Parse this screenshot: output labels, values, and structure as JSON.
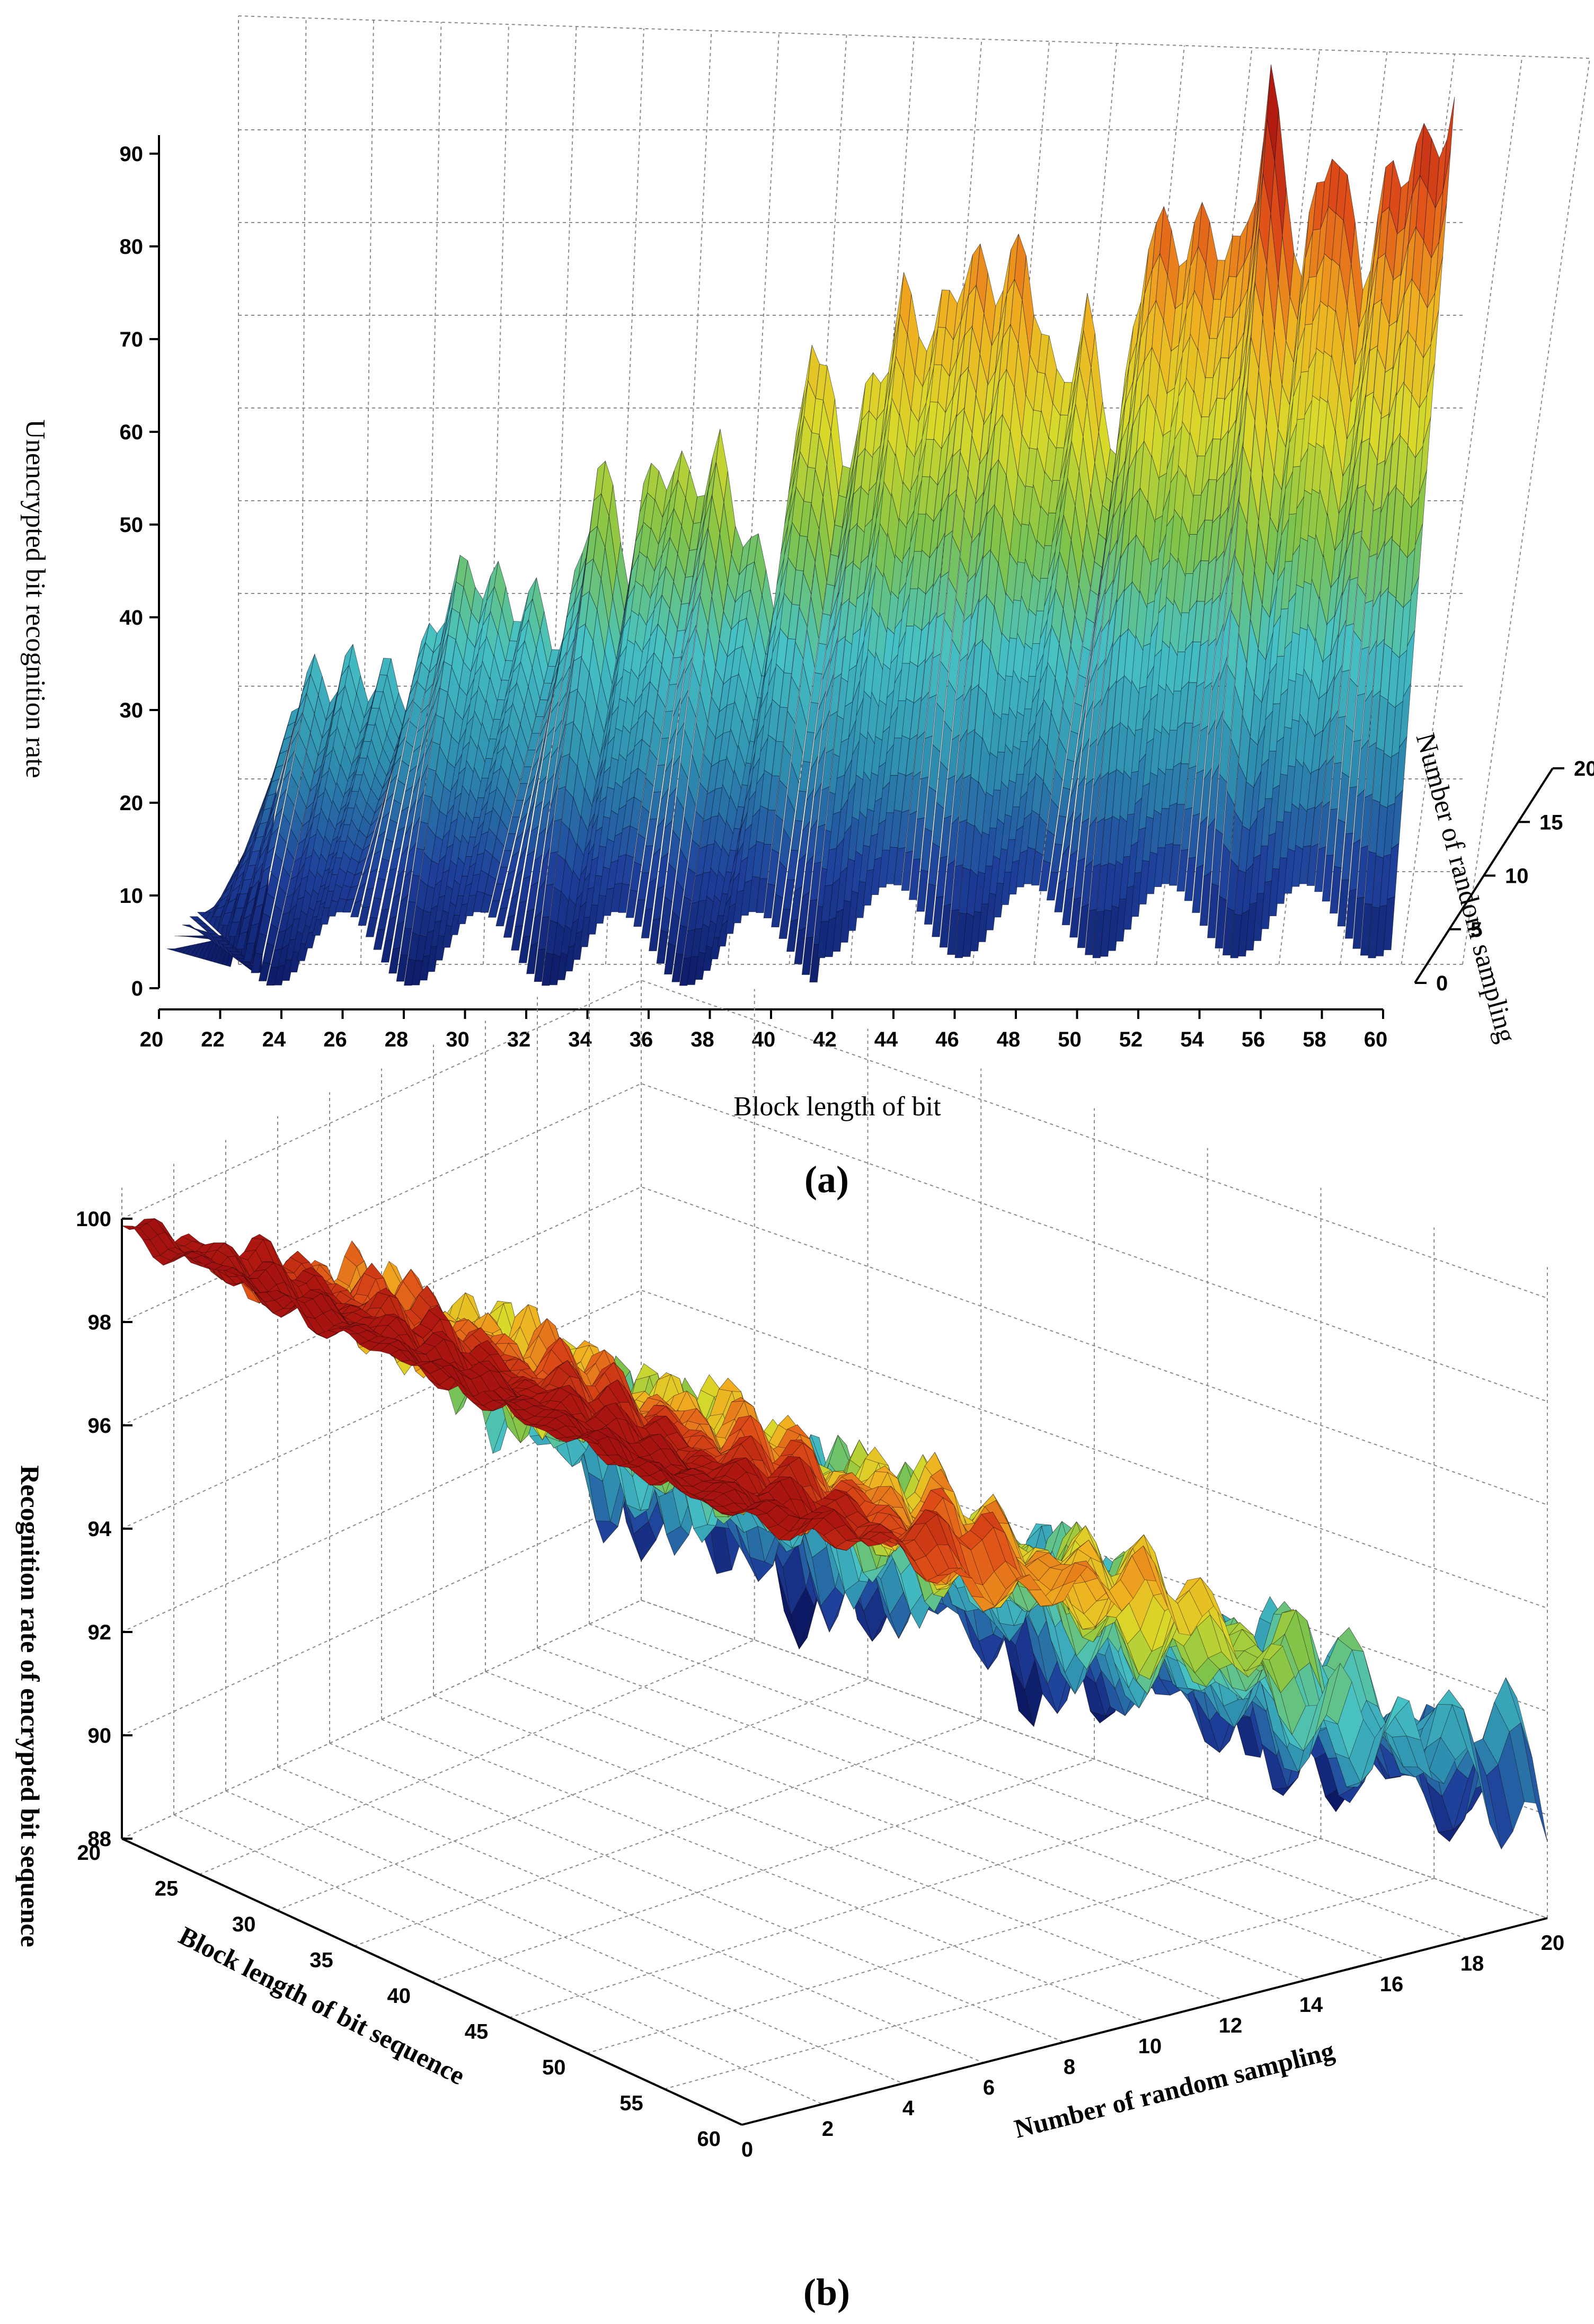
{
  "chart_data": [
    {
      "type": "surface",
      "panel_label": "(a)",
      "xlabel": "Block length of bit",
      "ylabel": "Number of random sampling",
      "zlabel": "Unencrypted bit recognition rate",
      "x_ticks": [
        "20",
        "22",
        "24",
        "26",
        "28",
        "30",
        "32",
        "34",
        "36",
        "38",
        "40",
        "42",
        "44",
        "46",
        "48",
        "50",
        "52",
        "54",
        "56",
        "58",
        "60"
      ],
      "y_ticks": [
        "0",
        "5",
        "10",
        "15",
        "20"
      ],
      "z_ticks": [
        "0",
        "10",
        "20",
        "30",
        "40",
        "50",
        "60",
        "70",
        "80",
        "90"
      ],
      "xlim": [
        20,
        60
      ],
      "ylim": [
        0,
        20
      ],
      "zlim": [
        0,
        95
      ],
      "colormap": [
        "#0c1a66",
        "#1e3f9a",
        "#2f8fb0",
        "#46c1c4",
        "#7fc34a",
        "#d9d92a",
        "#f0b020",
        "#e05018",
        "#b01810"
      ],
      "ridge_profile": {
        "x": [
          20,
          21,
          22,
          24,
          26,
          27,
          28,
          29,
          30,
          31,
          32,
          33,
          34,
          35,
          36,
          37,
          38,
          39,
          40,
          41,
          42,
          43,
          44,
          45,
          46,
          47,
          48,
          49,
          50,
          51,
          52,
          53,
          54,
          55,
          56,
          57,
          58,
          59,
          60
        ],
        "z": [
          0,
          2,
          30,
          32,
          30,
          40,
          43,
          40,
          39,
          35,
          55,
          44,
          55,
          52,
          55,
          45,
          40,
          70,
          55,
          62,
          72,
          68,
          76,
          74,
          77,
          62,
          70,
          55,
          80,
          78,
          80,
          76,
          95,
          75,
          90,
          75,
          86,
          88,
          92
        ]
      }
    },
    {
      "type": "surface",
      "panel_label": "(b)",
      "xlabel": "Block length of bit sequence",
      "ylabel": "Number of random sampling",
      "zlabel": "Recognition rate of encrypted bit sequence",
      "x_ticks": [
        "20",
        "25",
        "30",
        "35",
        "40",
        "45",
        "50",
        "55",
        "60"
      ],
      "y_ticks": [
        "0",
        "2",
        "4",
        "6",
        "8",
        "10",
        "12",
        "14",
        "16",
        "18",
        "20"
      ],
      "z_ticks": [
        "88",
        "90",
        "92",
        "94",
        "96",
        "98",
        "100"
      ],
      "xlim": [
        20,
        60
      ],
      "ylim": [
        0,
        20
      ],
      "zlim": [
        88,
        100
      ],
      "colormap": [
        "#0c1a66",
        "#1e3f9a",
        "#2f8fb0",
        "#46c1c4",
        "#7fc34a",
        "#d9d92a",
        "#f0b020",
        "#e05018",
        "#b01810"
      ],
      "trend": {
        "sampling": [
          0,
          4,
          8,
          12,
          16,
          20
        ],
        "rate": [
          99.8,
          98.4,
          96.8,
          95.0,
          92.6,
          90.2
        ]
      }
    }
  ]
}
